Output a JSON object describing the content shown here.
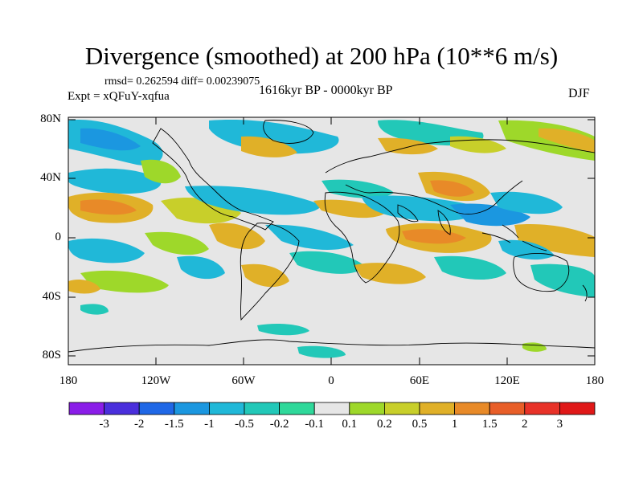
{
  "title": "Divergence (smoothed) at 200 hPa (10**6 m/s)",
  "stats": "rmsd= 0.262594 diff= 0.00239075",
  "experiment": "Expt = xQFuY-xqfua",
  "period": "1616kyr BP - 0000kyr BP",
  "season": "DJF",
  "lat_labels": [
    "80N",
    "40N",
    "0",
    "40S",
    "80S"
  ],
  "lon_labels": [
    "180",
    "120W",
    "60W",
    "0",
    "60E",
    "120E",
    "180"
  ],
  "colorbar": {
    "labels": [
      "-3",
      "-2",
      "-1.5",
      "-1",
      "-0.5",
      "-0.2",
      "-0.1",
      "0.1",
      "0.2",
      "0.5",
      "1",
      "1.5",
      "2",
      "3"
    ],
    "colors": [
      "#8a1de8",
      "#4a2fdc",
      "#1f67e6",
      "#1b97e0",
      "#20b8d8",
      "#22c8b8",
      "#2fd89a",
      "#e6e6e6",
      "#9ed82a",
      "#c8cf2a",
      "#e0b028",
      "#e88a28",
      "#e85e28",
      "#e83228",
      "#e01818"
    ]
  },
  "colors": {
    "no_change": "#e6e6e6",
    "weak_neg": "#2fd89a",
    "mid_neg": "#22c8b8",
    "strong_neg": "#20b8d8",
    "vstrong_neg": "#1b97e0",
    "weak_pos": "#9ed82a",
    "mid_pos": "#c8cf2a",
    "strong_pos": "#e0b028",
    "vstrong_pos": "#e88a28"
  }
}
